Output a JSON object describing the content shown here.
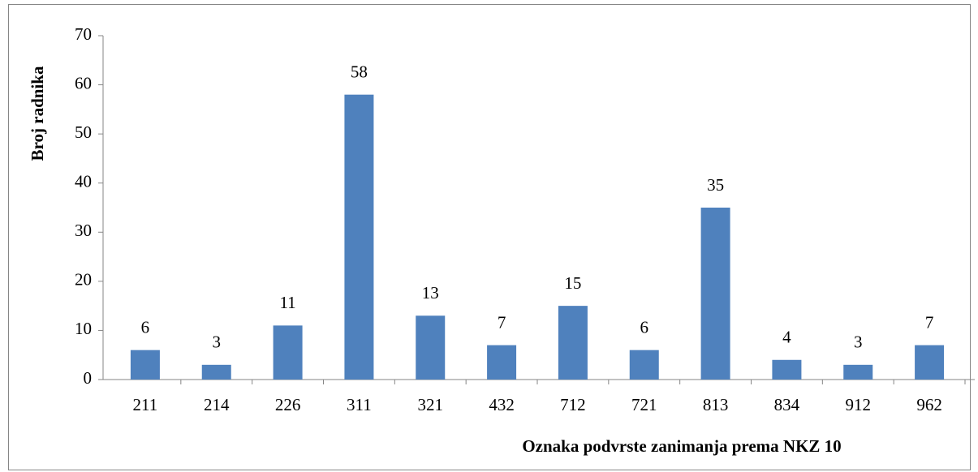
{
  "chart_data": {
    "type": "bar",
    "x_label": "Oznaka podvrste zanimanja prema NKZ 10",
    "y_label": "Broj radnika",
    "categories": [
      "211",
      "214",
      "226",
      "311",
      "321",
      "432",
      "712",
      "721",
      "813",
      "834",
      "912",
      "962"
    ],
    "values": [
      6,
      3,
      11,
      58,
      13,
      7,
      15,
      6,
      35,
      4,
      3,
      7
    ],
    "color": "#4f81bd",
    "ylim": [
      0,
      70
    ],
    "yticks": [
      0,
      10,
      20,
      30,
      40,
      50,
      60,
      70
    ],
    "grid": false
  }
}
